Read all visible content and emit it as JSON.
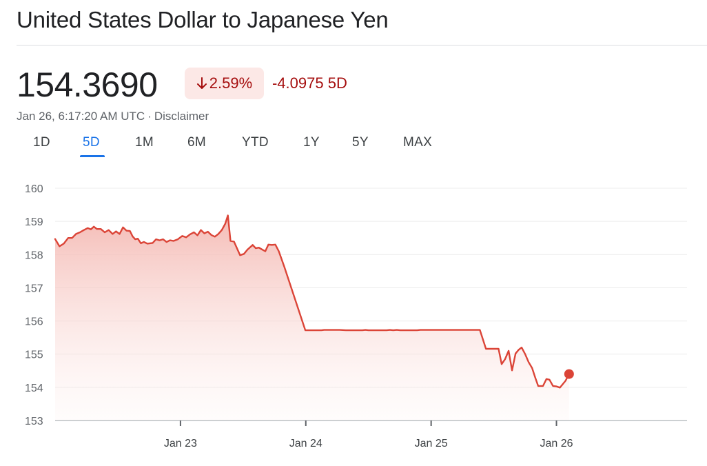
{
  "header": {
    "title": "United States Dollar to Japanese Yen"
  },
  "quote": {
    "price": "154.3690",
    "percent_change": "2.59%",
    "absolute_change": "-4.0975 5D",
    "timestamp": "Jan 26, 6:17:20 AM UTC",
    "separator": "·",
    "disclaimer": "Disclaimer",
    "change_color": "#a50e0e",
    "badge_color": "#fce8e6",
    "direction_icon": "arrow-down-icon"
  },
  "range_tabs": [
    {
      "label": "1D",
      "active": false
    },
    {
      "label": "5D",
      "active": true
    },
    {
      "label": "1M",
      "active": false
    },
    {
      "label": "6M",
      "active": false
    },
    {
      "label": "YTD",
      "active": false
    },
    {
      "label": "1Y",
      "active": false
    },
    {
      "label": "5Y",
      "active": false
    },
    {
      "label": "MAX",
      "active": false
    }
  ],
  "colors": {
    "line": "#db4437",
    "accent": "#1a73e8"
  },
  "chart_data": {
    "type": "area",
    "title": "",
    "xlabel": "",
    "ylabel": "",
    "ylim": [
      153,
      160
    ],
    "yticks": [
      153,
      154,
      155,
      156,
      157,
      158,
      159,
      160
    ],
    "x_domain": [
      "2025-01-22T00:00",
      "2025-01-27T01:00"
    ],
    "xticks": [
      {
        "label": "Jan 23",
        "t": "2025-01-23T00:00"
      },
      {
        "label": "Jan 24",
        "t": "2025-01-24T00:00"
      },
      {
        "label": "Jan 25",
        "t": "2025-01-25T00:00"
      },
      {
        "label": "Jan 26",
        "t": "2025-01-26T00:00"
      }
    ],
    "grid": true,
    "legend": "none",
    "series": [
      {
        "points": [
          [
            "2025-01-22T00:00",
            158.47
          ],
          [
            "2025-01-22T00:50",
            158.25
          ],
          [
            "2025-01-22T01:40",
            158.33
          ],
          [
            "2025-01-22T02:30",
            158.5
          ],
          [
            "2025-01-22T03:15",
            158.5
          ],
          [
            "2025-01-22T04:00",
            158.62
          ],
          [
            "2025-01-22T04:45",
            158.67
          ],
          [
            "2025-01-22T05:30",
            158.74
          ],
          [
            "2025-01-22T06:15",
            158.8
          ],
          [
            "2025-01-22T06:50",
            158.76
          ],
          [
            "2025-01-22T07:25",
            158.84
          ],
          [
            "2025-01-22T08:00",
            158.77
          ],
          [
            "2025-01-22T08:45",
            158.77
          ],
          [
            "2025-01-22T09:30",
            158.67
          ],
          [
            "2025-01-22T10:15",
            158.74
          ],
          [
            "2025-01-22T11:00",
            158.62
          ],
          [
            "2025-01-22T11:40",
            158.7
          ],
          [
            "2025-01-22T12:20",
            158.62
          ],
          [
            "2025-01-22T13:00",
            158.82
          ],
          [
            "2025-01-22T13:40",
            158.72
          ],
          [
            "2025-01-22T14:20",
            158.71
          ],
          [
            "2025-01-22T14:50",
            158.55
          ],
          [
            "2025-01-22T15:20",
            158.46
          ],
          [
            "2025-01-22T15:50",
            158.48
          ],
          [
            "2025-01-22T16:25",
            158.34
          ],
          [
            "2025-01-22T17:00",
            158.38
          ],
          [
            "2025-01-22T17:40",
            158.33
          ],
          [
            "2025-01-22T18:40",
            158.35
          ],
          [
            "2025-01-22T19:20",
            158.46
          ],
          [
            "2025-01-22T20:00",
            158.43
          ],
          [
            "2025-01-22T20:40",
            158.46
          ],
          [
            "2025-01-22T21:20",
            158.38
          ],
          [
            "2025-01-22T22:00",
            158.43
          ],
          [
            "2025-01-22T22:40",
            158.41
          ],
          [
            "2025-01-22T23:30",
            158.46
          ],
          [
            "2025-01-23T00:20",
            158.56
          ],
          [
            "2025-01-23T01:05",
            158.52
          ],
          [
            "2025-01-23T01:50",
            158.61
          ],
          [
            "2025-01-23T02:35",
            158.67
          ],
          [
            "2025-01-23T03:15",
            158.58
          ],
          [
            "2025-01-23T03:55",
            158.74
          ],
          [
            "2025-01-23T04:35",
            158.64
          ],
          [
            "2025-01-23T05:15",
            158.69
          ],
          [
            "2025-01-23T05:55",
            158.59
          ],
          [
            "2025-01-23T06:35",
            158.54
          ],
          [
            "2025-01-23T07:15",
            158.62
          ],
          [
            "2025-01-23T07:55",
            158.74
          ],
          [
            "2025-01-23T08:35",
            158.93
          ],
          [
            "2025-01-23T09:05",
            159.18
          ],
          [
            "2025-01-23T09:35",
            158.41
          ],
          [
            "2025-01-23T10:15",
            158.39
          ],
          [
            "2025-01-23T11:25",
            157.98
          ],
          [
            "2025-01-23T12:10",
            158.02
          ],
          [
            "2025-01-23T12:50",
            158.15
          ],
          [
            "2025-01-23T13:50",
            158.29
          ],
          [
            "2025-01-23T14:25",
            158.19
          ],
          [
            "2025-01-23T15:00",
            158.21
          ],
          [
            "2025-01-23T15:40",
            158.15
          ],
          [
            "2025-01-23T16:15",
            158.1
          ],
          [
            "2025-01-23T16:50",
            158.3
          ],
          [
            "2025-01-23T17:30",
            158.29
          ],
          [
            "2025-01-23T18:10",
            158.3
          ],
          [
            "2025-01-23T18:50",
            158.1
          ],
          [
            "2025-01-23T19:55",
            157.62
          ],
          [
            "2025-01-23T23:55",
            155.72
          ],
          [
            "2025-01-24T01:10",
            155.72
          ],
          [
            "2025-01-24T03:00",
            155.72
          ],
          [
            "2025-01-24T03:30",
            155.73
          ],
          [
            "2025-01-24T06:30",
            155.73
          ],
          [
            "2025-01-24T07:40",
            155.72
          ],
          [
            "2025-01-24T10:50",
            155.72
          ],
          [
            "2025-01-24T11:25",
            155.73
          ],
          [
            "2025-01-24T12:00",
            155.72
          ],
          [
            "2025-01-24T15:30",
            155.72
          ],
          [
            "2025-01-24T16:05",
            155.73
          ],
          [
            "2025-01-24T16:45",
            155.72
          ],
          [
            "2025-01-24T17:25",
            155.73
          ],
          [
            "2025-01-24T18:05",
            155.72
          ],
          [
            "2025-01-24T21:20",
            155.72
          ],
          [
            "2025-01-24T21:55",
            155.73
          ],
          [
            "2025-01-25T09:20",
            155.73
          ],
          [
            "2025-01-25T10:30",
            155.16
          ],
          [
            "2025-01-25T12:55",
            155.16
          ],
          [
            "2025-01-25T13:30",
            154.7
          ],
          [
            "2025-01-25T14:10",
            154.85
          ],
          [
            "2025-01-25T14:50",
            155.1
          ],
          [
            "2025-01-25T15:30",
            154.51
          ],
          [
            "2025-01-25T16:10",
            155.02
          ],
          [
            "2025-01-25T16:45",
            155.13
          ],
          [
            "2025-01-25T17:20",
            155.2
          ],
          [
            "2025-01-25T18:00",
            155.0
          ],
          [
            "2025-01-25T18:40",
            154.76
          ],
          [
            "2025-01-25T19:20",
            154.58
          ],
          [
            "2025-01-25T19:55",
            154.3
          ],
          [
            "2025-01-25T20:30",
            154.04
          ],
          [
            "2025-01-25T21:25",
            154.04
          ],
          [
            "2025-01-25T22:05",
            154.25
          ],
          [
            "2025-01-25T22:40",
            154.23
          ],
          [
            "2025-01-25T23:20",
            154.04
          ],
          [
            "2025-01-25T23:55",
            154.03
          ],
          [
            "2025-01-26T00:40",
            153.99
          ],
          [
            "2025-01-26T01:45",
            154.2
          ],
          [
            "2025-01-26T02:25",
            154.4
          ]
        ]
      }
    ]
  }
}
